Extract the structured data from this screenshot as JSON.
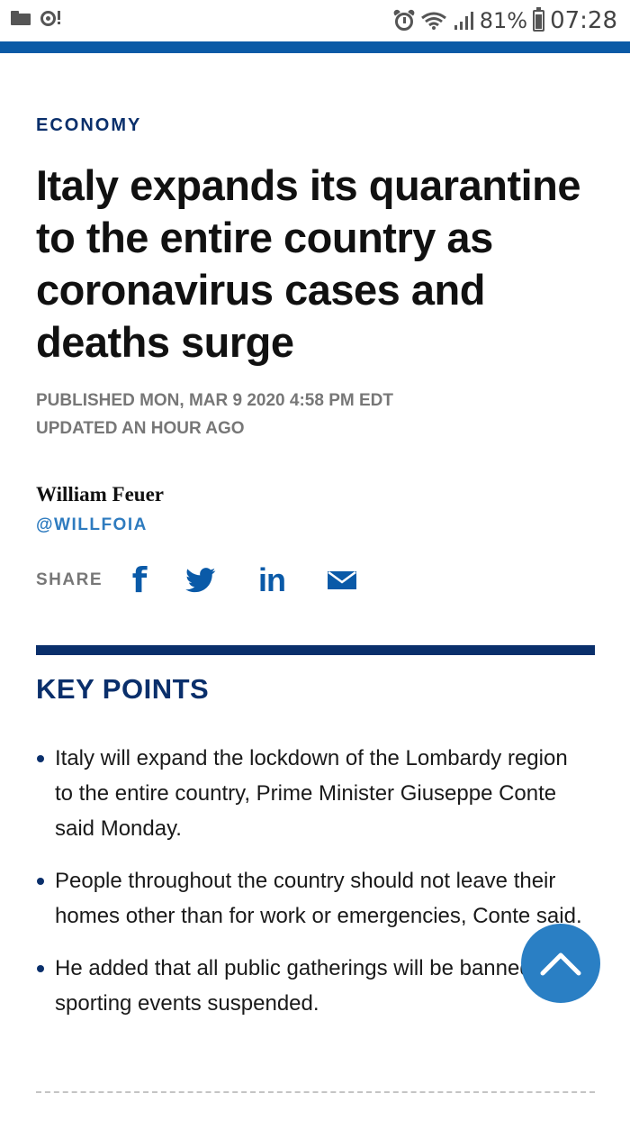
{
  "status_bar": {
    "battery_percent": "81%",
    "time": "07:28",
    "icons": [
      "folder-icon",
      "sync-alert-icon",
      "alarm-icon",
      "wifi-icon",
      "signal-icon",
      "battery-icon"
    ]
  },
  "article": {
    "category": "ECONOMY",
    "headline": "Italy expands its quarantine to the entire country as coronavirus cases and deaths surge",
    "published": "PUBLISHED MON, MAR 9 2020 4:58 PM EDT",
    "updated": "UPDATED AN HOUR AGO",
    "author": "William Feuer",
    "author_handle": "@WILLFOIA"
  },
  "share": {
    "label": "SHARE",
    "facebook_glyph": "f",
    "linkedin_glyph": "in"
  },
  "key_points": {
    "title": "KEY POINTS",
    "items": [
      "Italy will expand the lockdown of the Lombardy region to the entire country, Prime Minister Giuseppe Conte said Monday.",
      "People throughout the country should not leave their homes other than for work or emergencies, Conte said.",
      "He added that all public gatherings will be banned and sporting events suspended."
    ]
  },
  "colors": {
    "brand_blue": "#0b5aa6",
    "navy": "#0a2f6b",
    "link_blue": "#2e7bbf",
    "scroll_button": "#2a7fc4",
    "meta_gray": "#777777"
  }
}
